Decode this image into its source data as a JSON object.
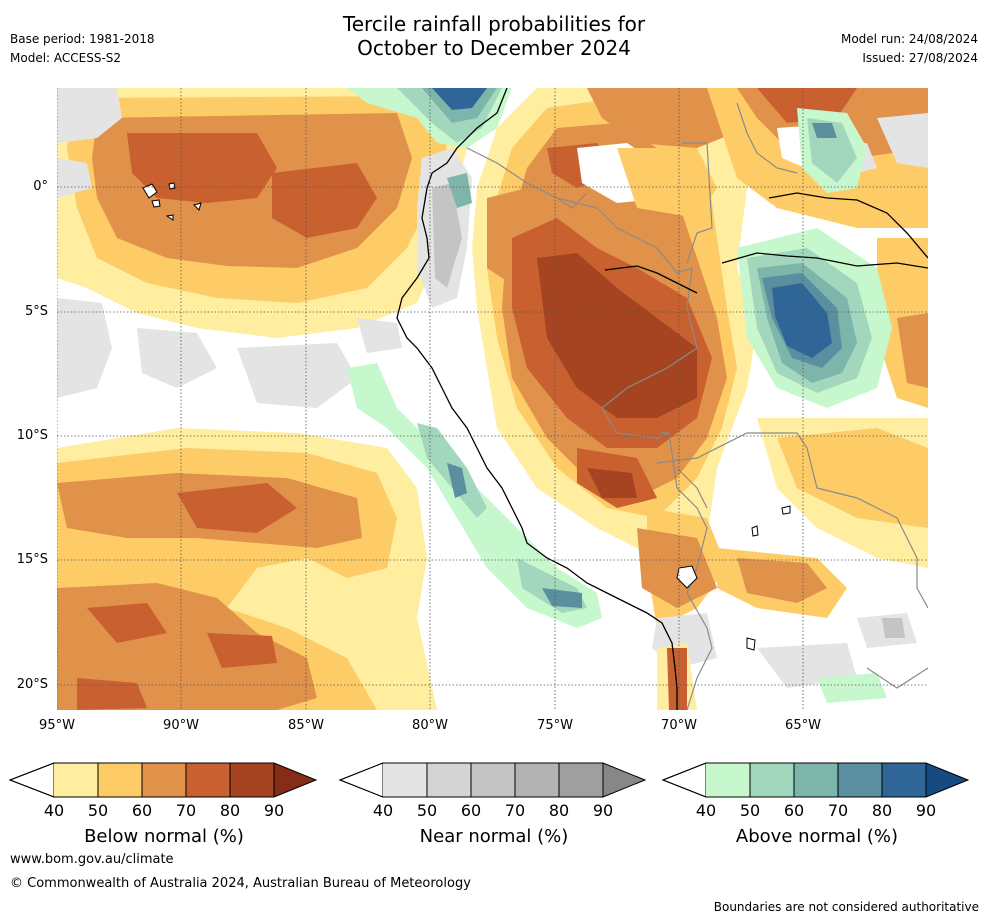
{
  "header": {
    "title_line1": "Tercile rainfall probabilities for",
    "title_line2": "October to December 2024",
    "base_period": "Base period: 1981-2018",
    "model": "Model: ACCESS-S2",
    "model_run": "Model run: 24/08/2024",
    "issued": "Issued: 27/08/2024"
  },
  "map": {
    "lat_labels": [
      "0°",
      "5°S",
      "10°S",
      "15°S",
      "20°S"
    ],
    "lon_labels": [
      "95°W",
      "90°W",
      "85°W",
      "80°W",
      "75°W",
      "70°W",
      "65°W"
    ],
    "colors": {
      "below": [
        "#ffeda0",
        "#fecc66",
        "#e0914a",
        "#c8602f",
        "#a64422",
        "#862d17"
      ],
      "near": [
        "#e4e4e4",
        "#d4d4d4",
        "#c4c4c4",
        "#b3b3b3",
        "#9f9f9f",
        "#878787"
      ],
      "above": [
        "#c7f7cd",
        "#a3d7bd",
        "#7db5ab",
        "#5a8f9f",
        "#306697",
        "#164a80"
      ]
    }
  },
  "colorbars": {
    "below": {
      "title": "Below normal (%)",
      "ticks": [
        "40",
        "50",
        "60",
        "70",
        "80",
        "90"
      ]
    },
    "near": {
      "title": "Near normal (%)",
      "ticks": [
        "40",
        "50",
        "60",
        "70",
        "80",
        "90"
      ]
    },
    "above": {
      "title": "Above normal (%)",
      "ticks": [
        "40",
        "50",
        "60",
        "70",
        "80",
        "90"
      ]
    }
  },
  "footer": {
    "website": "www.bom.gov.au/climate",
    "copyright": "© Commonwealth of Australia 2024, Australian Bureau of Meteorology",
    "disclaimer": "Boundaries are not considered authoritative"
  }
}
